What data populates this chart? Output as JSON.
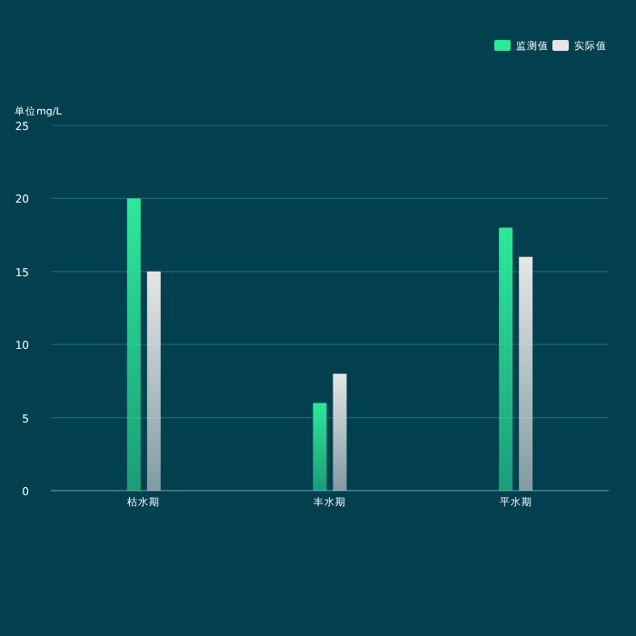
{
  "chart_data": {
    "type": "bar",
    "ylabel": "单位mg/L",
    "categories": [
      "枯水期",
      "丰水期",
      "平水期"
    ],
    "series": [
      {
        "name": "监测值",
        "color": "#2ee89a",
        "values": [
          20,
          6,
          18
        ]
      },
      {
        "name": "实际值",
        "color": "#e6e6e6",
        "values": [
          15,
          8,
          16
        ]
      }
    ],
    "ylim": [
      0,
      25
    ],
    "yticks": [
      0,
      5,
      10,
      15,
      20,
      25
    ],
    "grid": "y",
    "legend": "top right"
  }
}
